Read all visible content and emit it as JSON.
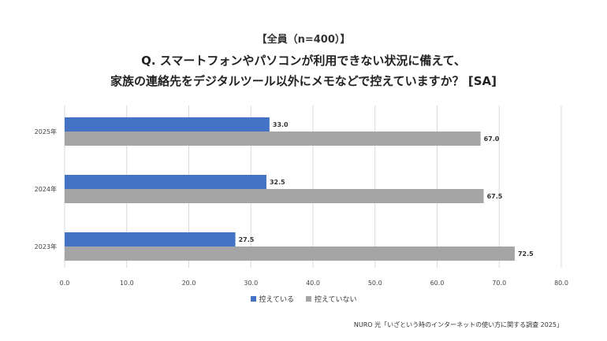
{
  "header": {
    "subtitle": "【全員（n=400）】",
    "title_line1": "Q. スマートフォンやパソコンが利用できない状況に備えて、",
    "title_line2": "家族の連絡先をデジタルツール以外にメモなどで控えていますか？ [SA]"
  },
  "footer": {
    "source": "NURO 光「いざという時のインターネットの使い方に関する調査 2025」"
  },
  "colors": {
    "series1": "#4472c4",
    "series2": "#a5a5a5",
    "grid": "#d9d9d9"
  },
  "chart_data": {
    "type": "bar",
    "orientation": "horizontal",
    "categories": [
      "2025年",
      "2024年",
      "2023年"
    ],
    "series": [
      {
        "name": "控えている",
        "values": [
          33.0,
          32.5,
          27.5
        ]
      },
      {
        "name": "控えていない",
        "values": [
          67.0,
          67.5,
          72.5
        ]
      }
    ],
    "xlim": [
      0,
      80
    ],
    "xticks": [
      "0.0",
      "10.0",
      "20.0",
      "30.0",
      "40.0",
      "50.0",
      "60.0",
      "70.0",
      "80.0"
    ],
    "grid": true,
    "legend_position": "bottom"
  }
}
